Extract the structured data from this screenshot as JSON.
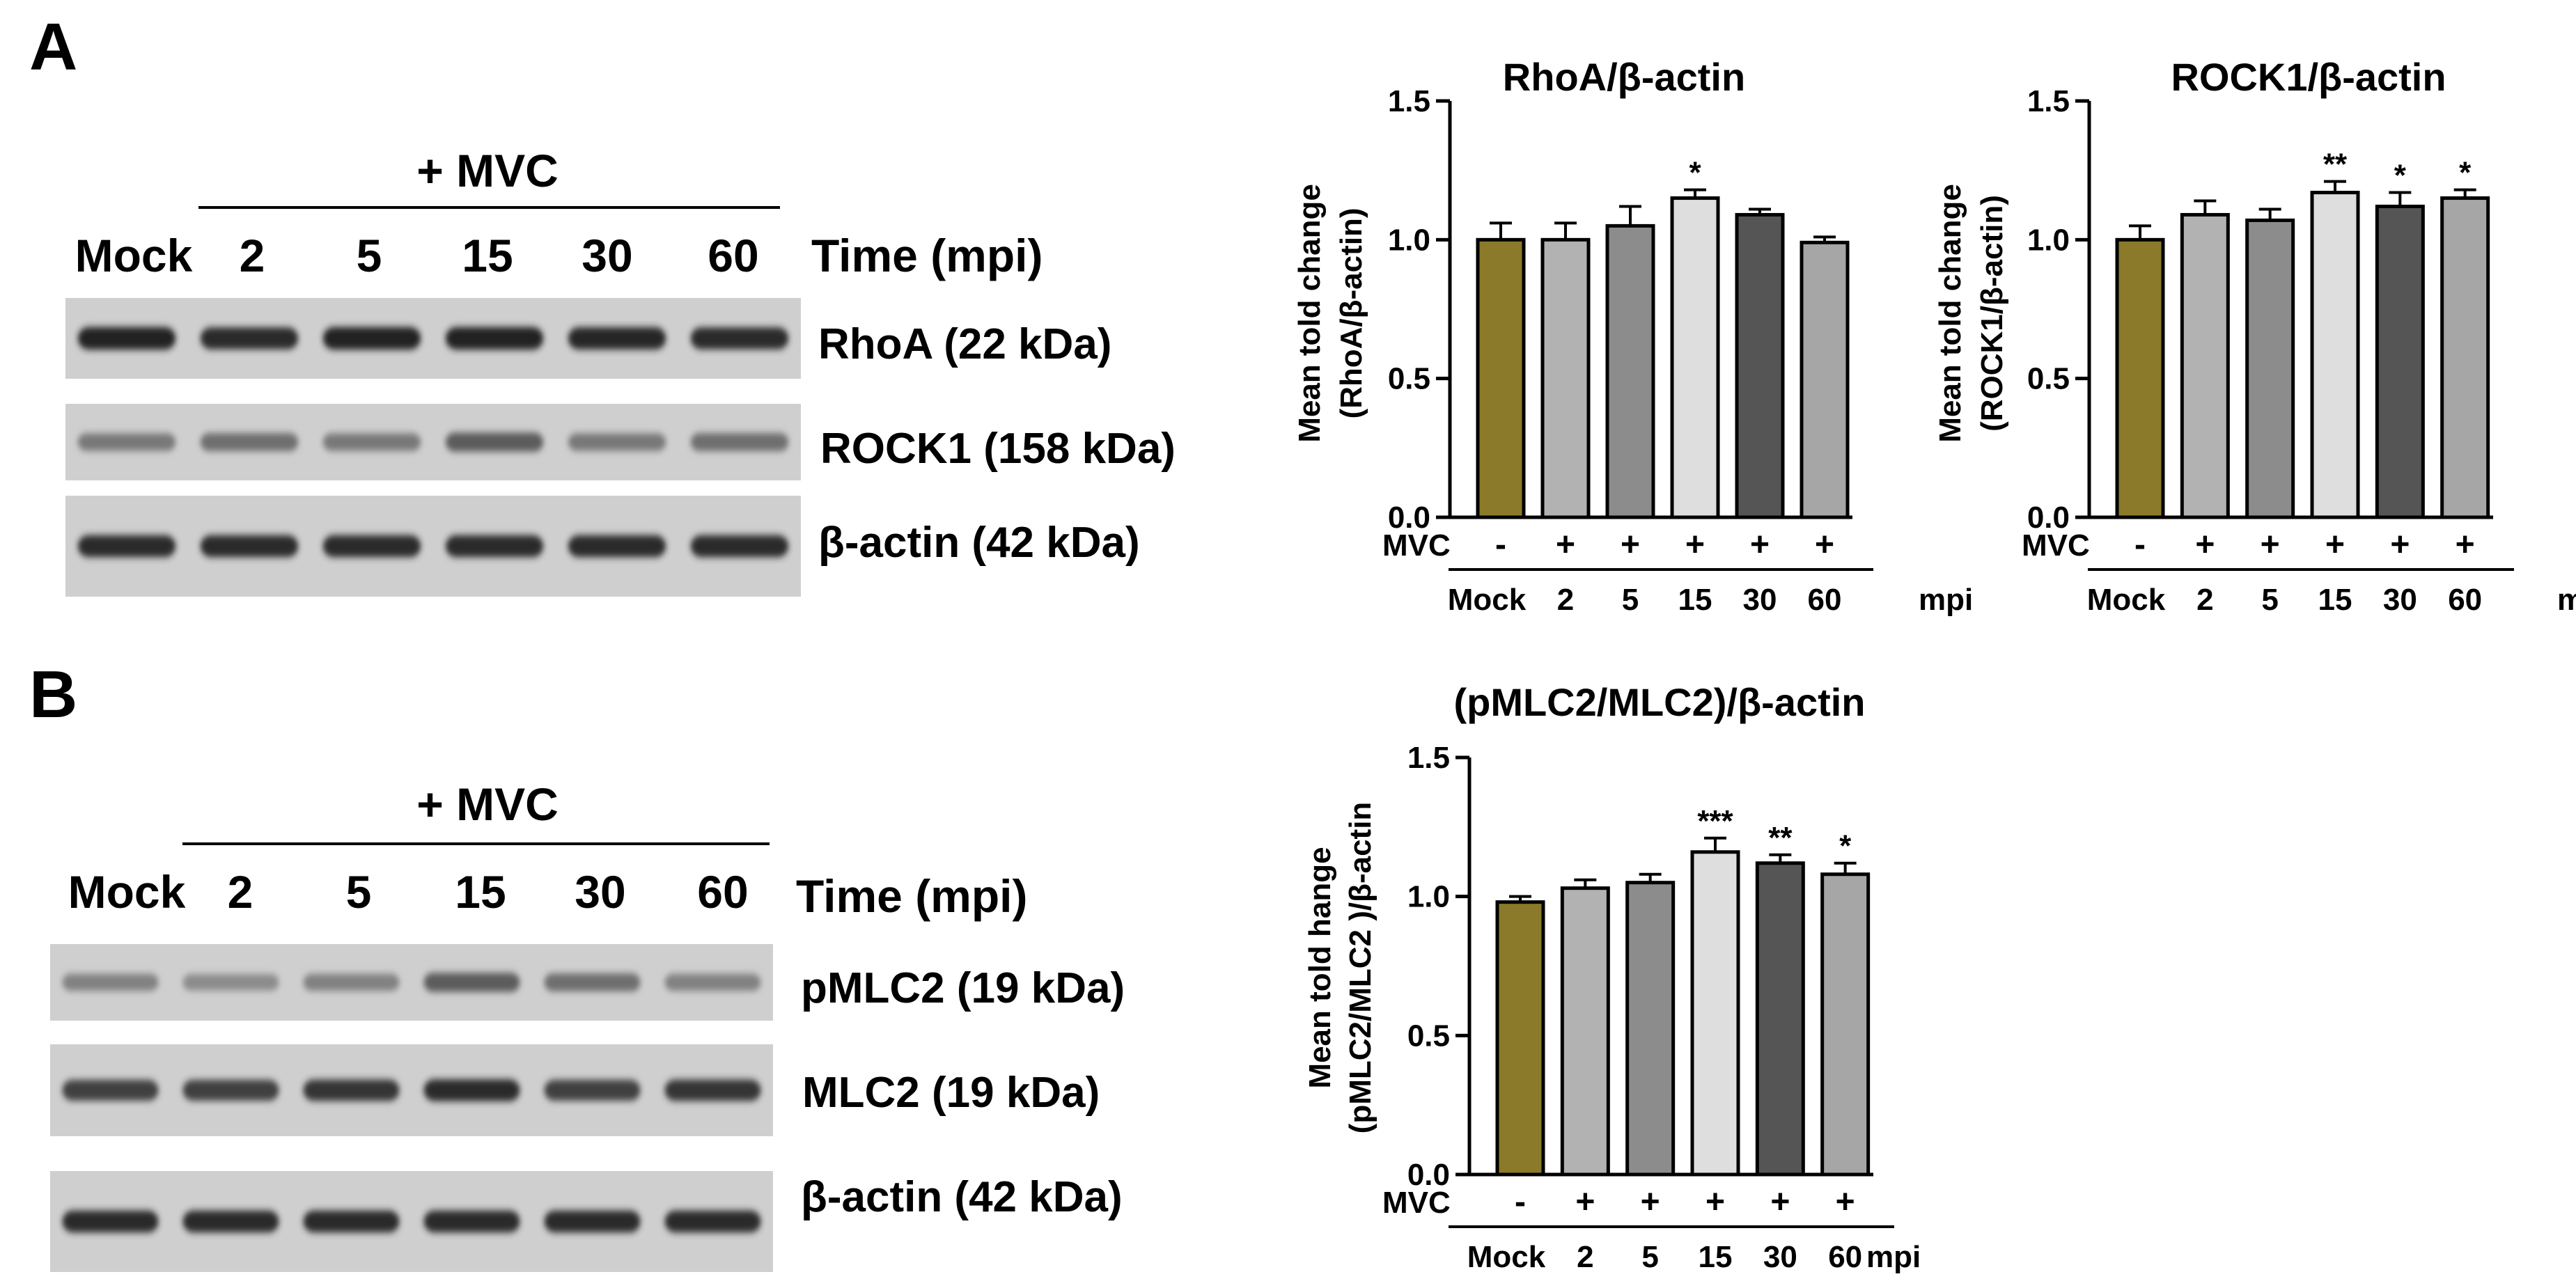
{
  "panels": [
    {
      "letter": "A"
    },
    {
      "letter": "B"
    }
  ],
  "blots": [
    {
      "group_label": "+ MVC",
      "lanes": [
        "Mock",
        "2",
        "5",
        "15",
        "30",
        "60"
      ],
      "time_label": "Time (mpi)",
      "bands": [
        {
          "label": "RhoA (22 kDa)",
          "intensity": [
            0.9,
            0.85,
            0.9,
            0.9,
            0.88,
            0.85
          ]
        },
        {
          "label": "ROCK1 (158 kDa)",
          "intensity": [
            0.45,
            0.5,
            0.45,
            0.6,
            0.45,
            0.5
          ]
        },
        {
          "label": "β-actin (42 kDa)",
          "intensity": [
            0.85,
            0.85,
            0.85,
            0.85,
            0.85,
            0.85
          ]
        }
      ]
    },
    {
      "group_label": "+ MVC",
      "lanes": [
        "Mock",
        "2",
        "5",
        "15",
        "30",
        "60"
      ],
      "time_label": "Time (mpi)",
      "bands": [
        {
          "label": "pMLC2 (19 kDa)",
          "intensity": [
            0.4,
            0.35,
            0.4,
            0.6,
            0.5,
            0.4
          ]
        },
        {
          "label": "MLC2 (19 kDa)",
          "intensity": [
            0.75,
            0.75,
            0.8,
            0.85,
            0.75,
            0.8
          ]
        },
        {
          "label": "β-actin (42 kDa)",
          "intensity": [
            0.85,
            0.85,
            0.85,
            0.85,
            0.85,
            0.85
          ]
        }
      ]
    }
  ],
  "chart_data": [
    {
      "type": "bar",
      "title": "RhoA/β-actin",
      "ylabel": [
        "Mean told change",
        "(RhoA/β-actin)"
      ],
      "ylim": [
        0,
        1.5
      ],
      "yticks": [
        "0.0",
        "0.5",
        "1.0",
        "1.5"
      ],
      "row_label": "MVC",
      "mvc": [
        "-",
        "+",
        "+",
        "+",
        "+",
        "+"
      ],
      "categories": [
        "Mock",
        "2",
        "5",
        "15",
        "30",
        "60"
      ],
      "unit": "mpi",
      "values": [
        1.0,
        1.0,
        1.05,
        1.15,
        1.09,
        0.99
      ],
      "errors": [
        0.06,
        0.06,
        0.07,
        0.03,
        0.02,
        0.02
      ],
      "significance": [
        "",
        "",
        "",
        "*",
        "",
        ""
      ],
      "colors": [
        "#8a7a2a",
        "#b2b2b2",
        "#8c8c8c",
        "#dedede",
        "#555555",
        "#a6a6a6"
      ]
    },
    {
      "type": "bar",
      "title": "ROCK1/β-actin",
      "ylabel": [
        "Mean told change",
        "(ROCK1/β-actin)"
      ],
      "ylim": [
        0,
        1.5
      ],
      "yticks": [
        "0.0",
        "0.5",
        "1.0",
        "1.5"
      ],
      "row_label": "MVC",
      "mvc": [
        "-",
        "+",
        "+",
        "+",
        "+",
        "+"
      ],
      "categories": [
        "Mock",
        "2",
        "5",
        "15",
        "30",
        "60"
      ],
      "unit": "mpi",
      "values": [
        1.0,
        1.09,
        1.07,
        1.17,
        1.12,
        1.15
      ],
      "errors": [
        0.05,
        0.05,
        0.04,
        0.04,
        0.05,
        0.03
      ],
      "significance": [
        "",
        "",
        "",
        "**",
        "*",
        "*"
      ],
      "colors": [
        "#8a7a2a",
        "#b2b2b2",
        "#8c8c8c",
        "#dedede",
        "#555555",
        "#a6a6a6"
      ]
    },
    {
      "type": "bar",
      "title": "(pMLC2/MLC2)/β-actin",
      "ylabel": [
        "Mean told hange",
        "(pMLC2/MLC2 )/β-actin"
      ],
      "ylim": [
        0,
        1.5
      ],
      "yticks": [
        "0.0",
        "0.5",
        "1.0",
        "1.5"
      ],
      "row_label": "MVC",
      "mvc": [
        "-",
        "+",
        "+",
        "+",
        "+",
        "+"
      ],
      "categories": [
        "Mock",
        "2",
        "5",
        "15",
        "30",
        "60"
      ],
      "unit": "mpi",
      "values": [
        0.98,
        1.03,
        1.05,
        1.16,
        1.12,
        1.08
      ],
      "errors": [
        0.02,
        0.03,
        0.03,
        0.05,
        0.03,
        0.04
      ],
      "significance": [
        "",
        "",
        "",
        "***",
        "**",
        "*"
      ],
      "colors": [
        "#8a7a2a",
        "#b2b2b2",
        "#8c8c8c",
        "#dedede",
        "#555555",
        "#a6a6a6"
      ]
    }
  ]
}
